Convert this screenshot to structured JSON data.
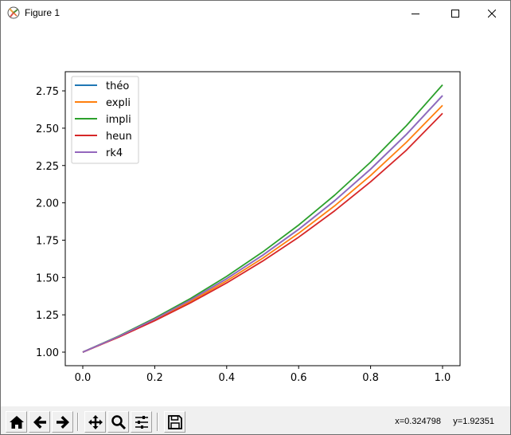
{
  "window": {
    "title": "Figure 1",
    "icon": "matplotlib-icon",
    "controls": [
      "minimize",
      "maximize",
      "close"
    ]
  },
  "toolbar": {
    "buttons": [
      {
        "name": "home",
        "icon": "home-icon"
      },
      {
        "name": "back",
        "icon": "arrow-left-icon"
      },
      {
        "name": "forward",
        "icon": "arrow-right-icon"
      },
      {
        "name": "pan",
        "icon": "move-icon"
      },
      {
        "name": "zoom",
        "icon": "magnifier-icon"
      },
      {
        "name": "configure-subplots",
        "icon": "sliders-icon"
      },
      {
        "name": "save",
        "icon": "floppy-disk-icon"
      }
    ],
    "coords": "x=0.324798     y=1.92351"
  },
  "chart_data": {
    "type": "line",
    "title": "",
    "xlabel": "",
    "ylabel": "",
    "xlim": [
      -0.05,
      1.05
    ],
    "ylim": [
      0.91,
      2.88
    ],
    "xticks": [
      "0.0",
      "0.2",
      "0.4",
      "0.6",
      "0.8",
      "1.0"
    ],
    "yticks": [
      "1.00",
      "1.25",
      "1.50",
      "1.75",
      "2.00",
      "2.25",
      "2.50",
      "2.75"
    ],
    "grid": false,
    "legend_position": "upper left",
    "x": [
      0.0,
      0.1,
      0.2,
      0.3,
      0.4,
      0.5,
      0.6,
      0.7,
      0.8,
      0.9,
      1.0
    ],
    "series": [
      {
        "name": "théo",
        "color": "#1f77b4",
        "values": [
          1.0,
          1.1052,
          1.2214,
          1.3499,
          1.4918,
          1.6487,
          1.8221,
          2.0138,
          2.2255,
          2.4596,
          2.7183
        ]
      },
      {
        "name": "expli",
        "color": "#ff7f0e",
        "values": [
          1.0,
          1.1025,
          1.2155,
          1.3401,
          1.4775,
          1.6289,
          1.7959,
          1.9799,
          2.1829,
          2.4066,
          2.6533
        ]
      },
      {
        "name": "impli",
        "color": "#2ca02c",
        "values": [
          1.0,
          1.108,
          1.2278,
          1.3604,
          1.5075,
          1.6705,
          1.851,
          2.0511,
          2.2727,
          2.5183,
          2.7905
        ]
      },
      {
        "name": "heun",
        "color": "#d62728",
        "values": [
          1.0,
          1.1005,
          1.2104,
          1.331,
          1.4639,
          1.6098,
          1.7701,
          1.9467,
          2.1408,
          2.354,
          2.6
        ]
      },
      {
        "name": "rk4",
        "color": "#9467bd",
        "values": [
          1.0,
          1.1052,
          1.2214,
          1.3499,
          1.4918,
          1.6487,
          1.8221,
          2.0138,
          2.2255,
          2.4596,
          2.7183
        ]
      }
    ]
  }
}
